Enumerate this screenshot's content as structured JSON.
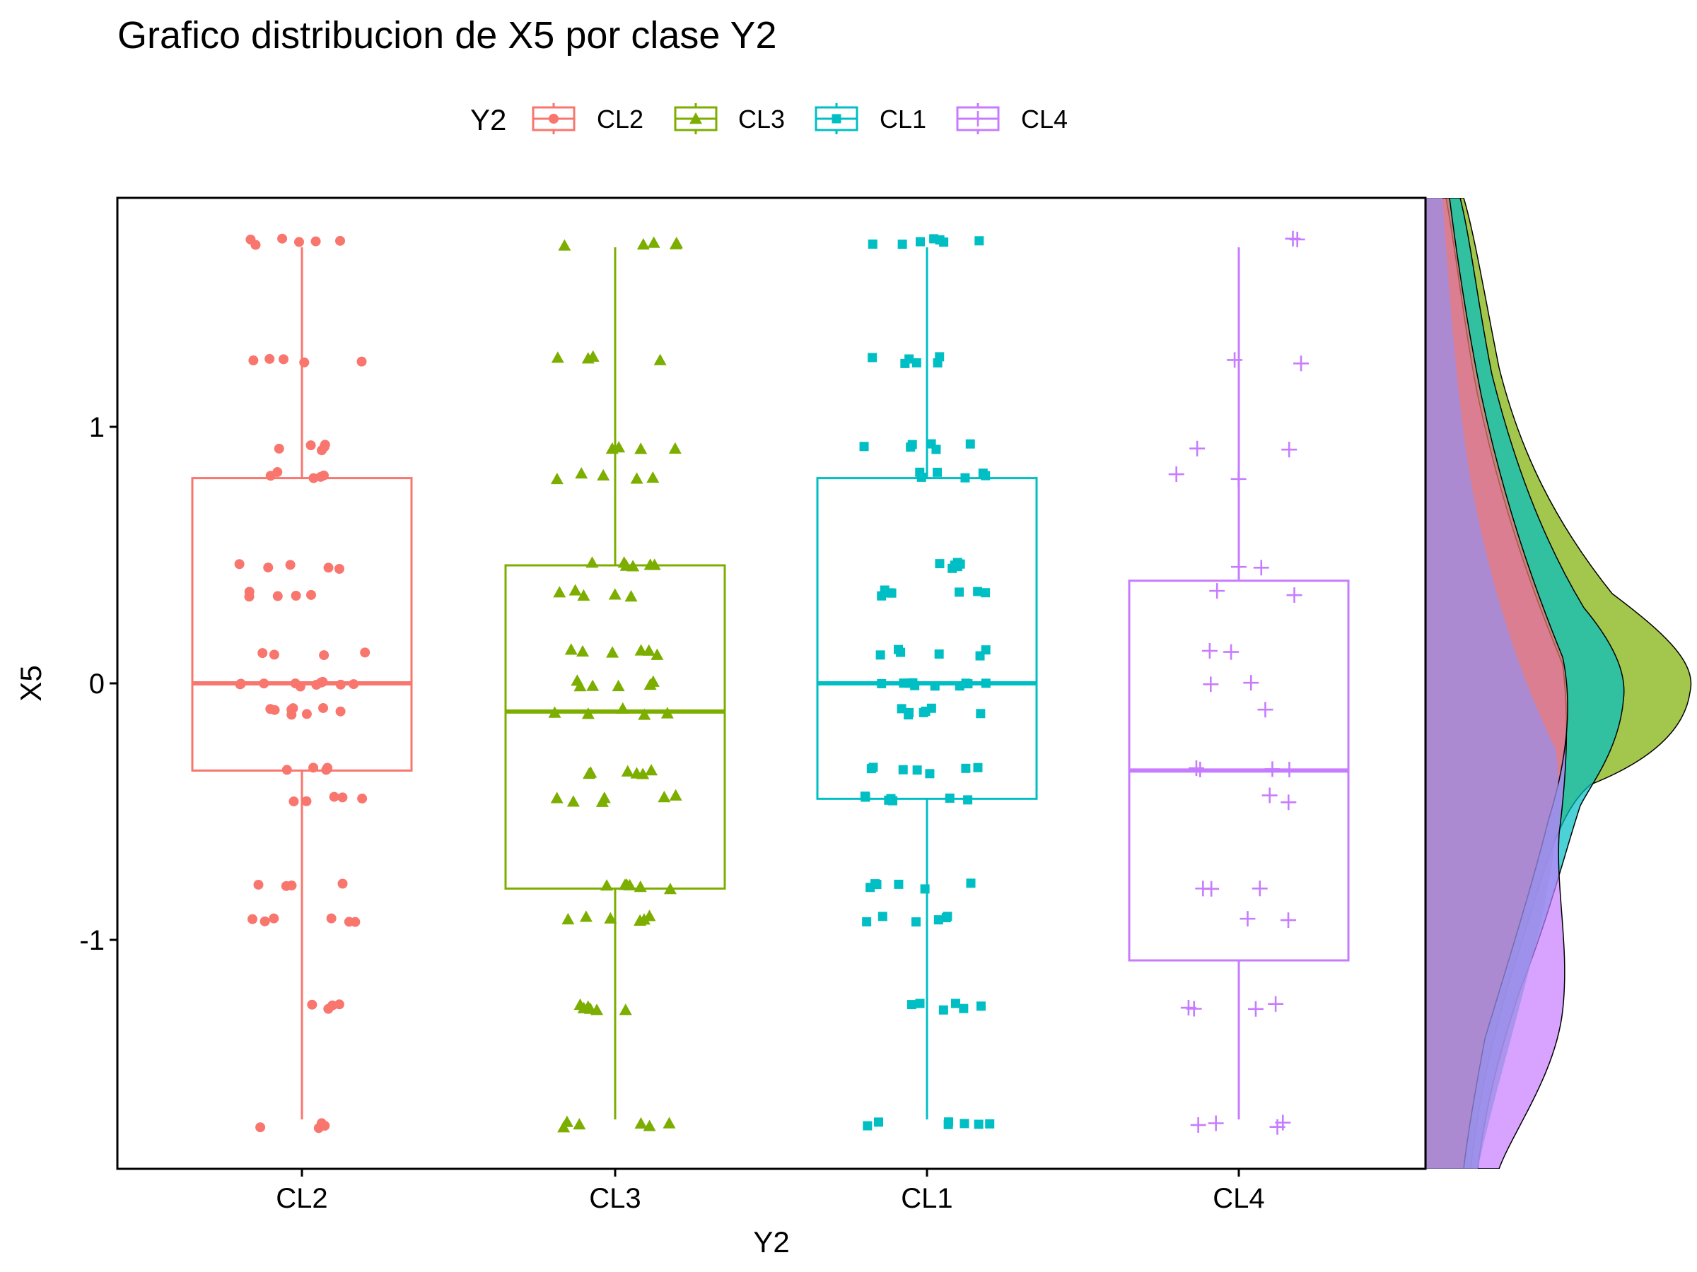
{
  "chart_data": {
    "type": "boxplot",
    "title": "Grafico distribucion de X5 por clase Y2",
    "xlabel": "Y2",
    "ylabel": "X5",
    "ylim": [
      -1.87,
      1.9
    ],
    "y_ticks": [
      1,
      0,
      -1
    ],
    "y_tick_labels": [
      "1",
      "0",
      "-1"
    ],
    "categories": [
      "CL2",
      "CL3",
      "CL1",
      "CL4"
    ],
    "legend": {
      "title": "Y2",
      "position": "top",
      "entries": [
        {
          "label": "CL2",
          "color": "#F8766D",
          "shape": "circle"
        },
        {
          "label": "CL3",
          "color": "#7CAE00",
          "shape": "triangle"
        },
        {
          "label": "CL1",
          "color": "#00BFC4",
          "shape": "square"
        },
        {
          "label": "CL4",
          "color": "#C77CFF",
          "shape": "plus"
        }
      ]
    },
    "boxes": [
      {
        "category": "CL2",
        "color": "#F8766D",
        "min": -1.7,
        "q1": -0.34,
        "median": 0.0,
        "q3": 0.8,
        "max": 1.7
      },
      {
        "category": "CL3",
        "color": "#7CAE00",
        "min": -1.7,
        "q1": -0.8,
        "median": -0.11,
        "q3": 0.46,
        "max": 1.7
      },
      {
        "category": "CL1",
        "color": "#00BFC4",
        "min": -1.7,
        "q1": -0.45,
        "median": 0.0,
        "q3": 0.8,
        "max": 1.7
      },
      {
        "category": "CL4",
        "color": "#C77CFF",
        "min": -1.7,
        "q1": -1.08,
        "median": -0.34,
        "q3": 0.4,
        "max": 1.7
      }
    ],
    "value_levels": [
      -1.72,
      -1.26,
      -0.92,
      -0.79,
      -0.45,
      -0.34,
      -0.11,
      0.0,
      0.12,
      0.35,
      0.46,
      0.81,
      0.92,
      1.26,
      1.72
    ],
    "jitter_points": {
      "CL2": [
        -1.72,
        -1.72,
        -1.72,
        -1.72,
        -1.26,
        -1.26,
        -1.26,
        -1.26,
        -0.92,
        -0.92,
        -0.92,
        -0.92,
        -0.92,
        -0.92,
        -0.79,
        -0.79,
        -0.79,
        -0.79,
        -0.45,
        -0.45,
        -0.45,
        -0.45,
        -0.45,
        -0.34,
        -0.34,
        -0.34,
        -0.34,
        -0.34,
        -0.11,
        -0.11,
        -0.11,
        -0.11,
        -0.11,
        -0.11,
        -0.11,
        -0.11,
        0.0,
        0.0,
        0.0,
        0.0,
        0.0,
        0.0,
        0.0,
        0.0,
        0.0,
        0.0,
        0.12,
        0.12,
        0.12,
        0.12,
        0.35,
        0.35,
        0.35,
        0.35,
        0.35,
        0.46,
        0.46,
        0.46,
        0.46,
        0.46,
        0.81,
        0.81,
        0.81,
        0.81,
        0.81,
        0.92,
        0.92,
        0.92,
        0.92,
        0.92,
        1.26,
        1.26,
        1.26,
        1.26,
        1.26,
        1.72,
        1.72,
        1.72,
        1.72,
        1.72,
        1.72
      ],
      "CL3": [
        -1.72,
        -1.72,
        -1.72,
        -1.72,
        -1.72,
        -1.72,
        -1.26,
        -1.26,
        -1.26,
        -1.26,
        -1.26,
        -1.26,
        -0.92,
        -0.92,
        -0.92,
        -0.92,
        -0.92,
        -0.92,
        -0.79,
        -0.79,
        -0.79,
        -0.79,
        -0.79,
        -0.79,
        -0.45,
        -0.45,
        -0.45,
        -0.45,
        -0.45,
        -0.45,
        -0.34,
        -0.34,
        -0.34,
        -0.34,
        -0.34,
        -0.34,
        -0.11,
        -0.11,
        -0.11,
        -0.11,
        -0.11,
        0.0,
        0.0,
        0.0,
        0.0,
        0.0,
        0.0,
        0.12,
        0.12,
        0.12,
        0.12,
        0.12,
        0.12,
        0.35,
        0.35,
        0.35,
        0.35,
        0.35,
        0.46,
        0.46,
        0.46,
        0.46,
        0.46,
        0.46,
        0.81,
        0.81,
        0.81,
        0.81,
        0.81,
        0.92,
        0.92,
        0.92,
        0.92,
        1.26,
        1.26,
        1.26,
        1.26,
        1.72,
        1.72,
        1.72,
        1.72,
        1.72
      ],
      "CL1": [
        -1.72,
        -1.72,
        -1.72,
        -1.72,
        -1.72,
        -1.72,
        -1.72,
        -1.26,
        -1.26,
        -1.26,
        -1.26,
        -1.26,
        -1.26,
        -0.92,
        -0.92,
        -0.92,
        -0.92,
        -0.92,
        -0.92,
        -0.79,
        -0.79,
        -0.79,
        -0.79,
        -0.79,
        -0.79,
        -0.45,
        -0.45,
        -0.45,
        -0.45,
        -0.45,
        -0.45,
        -0.45,
        -0.34,
        -0.34,
        -0.34,
        -0.34,
        -0.34,
        -0.34,
        -0.34,
        -0.11,
        -0.11,
        -0.11,
        -0.11,
        -0.11,
        -0.11,
        -0.11,
        0.0,
        0.0,
        0.0,
        0.0,
        0.0,
        0.0,
        0.0,
        0.0,
        0.0,
        0.0,
        0.12,
        0.12,
        0.12,
        0.12,
        0.12,
        0.12,
        0.35,
        0.35,
        0.35,
        0.35,
        0.35,
        0.35,
        0.35,
        0.46,
        0.46,
        0.46,
        0.46,
        0.46,
        0.46,
        0.81,
        0.81,
        0.81,
        0.81,
        0.81,
        0.81,
        0.92,
        0.92,
        0.92,
        0.92,
        0.92,
        0.92,
        1.26,
        1.26,
        1.26,
        1.26,
        1.26,
        1.26,
        1.72,
        1.72,
        1.72,
        1.72,
        1.72,
        1.72,
        1.72
      ],
      "CL4": [
        -1.72,
        -1.72,
        -1.72,
        -1.72,
        -1.26,
        -1.26,
        -1.26,
        -1.26,
        -0.92,
        -0.92,
        -0.79,
        -0.79,
        -0.79,
        -0.45,
        -0.45,
        -0.34,
        -0.34,
        -0.34,
        -0.34,
        -0.11,
        0.0,
        0.0,
        0.12,
        0.12,
        0.35,
        0.35,
        0.46,
        0.46,
        0.81,
        0.81,
        0.92,
        0.92,
        1.26,
        1.26,
        1.72,
        1.72
      ]
    },
    "marginal_density": {
      "side": "right",
      "series": [
        {
          "name": "CL3",
          "color": "#7CAE00"
        },
        {
          "name": "CL1",
          "color": "#00BFC4"
        },
        {
          "name": "CL4",
          "color": "#C77CFF"
        },
        {
          "name": "CL2",
          "color": "#F8766D"
        }
      ]
    },
    "grid": false
  }
}
